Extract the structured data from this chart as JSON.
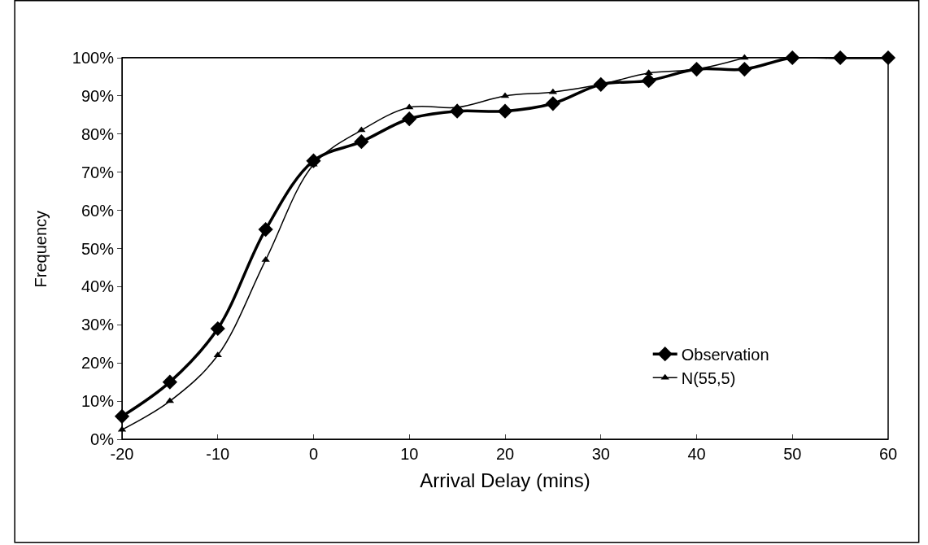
{
  "chart_data": {
    "type": "line",
    "xlabel": "Arrival Delay (mins)",
    "ylabel": "Frequency",
    "xlim": [
      -20,
      60
    ],
    "xticks": [
      -20,
      -10,
      0,
      10,
      20,
      30,
      40,
      50,
      60
    ],
    "ylim": [
      0,
      100
    ],
    "yticks": [
      {
        "value": 0,
        "label": "0%"
      },
      {
        "value": 10,
        "label": "10%"
      },
      {
        "value": 20,
        "label": "20%"
      },
      {
        "value": 30,
        "label": "30%"
      },
      {
        "value": 40,
        "label": "40%"
      },
      {
        "value": 50,
        "label": "50%"
      },
      {
        "value": 60,
        "label": "60%"
      },
      {
        "value": 70,
        "label": "70%"
      },
      {
        "value": 80,
        "label": "80%"
      },
      {
        "value": 90,
        "label": "90%"
      },
      {
        "value": 100,
        "label": "100%"
      }
    ],
    "grid": false,
    "legend": "bottom right",
    "series": [
      {
        "name": "Observation",
        "color": "#000000",
        "marker": "diamond",
        "x": [
          -20,
          -15,
          -10,
          -5,
          0,
          5,
          10,
          15,
          20,
          25,
          30,
          35,
          40,
          45,
          50,
          55,
          60
        ],
        "values": [
          6,
          15,
          29,
          55,
          73,
          78,
          84,
          86,
          86,
          88,
          93,
          94,
          97,
          97,
          100,
          100,
          100
        ]
      },
      {
        "name": "N(55,5)",
        "color": "#000000",
        "marker": "triangle",
        "x": [
          -20,
          -15,
          -10,
          -5,
          0,
          5,
          10,
          15,
          20,
          25,
          30,
          35,
          40,
          45
        ],
        "values": [
          2.5,
          10,
          22,
          47,
          72,
          81,
          87,
          87,
          90,
          91,
          93,
          96,
          97,
          100
        ]
      }
    ]
  }
}
